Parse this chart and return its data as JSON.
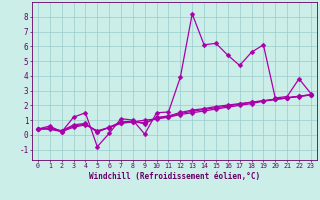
{
  "xlabel": "Windchill (Refroidissement éolien,°C)",
  "xlim": [
    -0.5,
    23.5
  ],
  "ylim": [
    -1.7,
    9.0
  ],
  "xticks": [
    0,
    1,
    2,
    3,
    4,
    5,
    6,
    7,
    8,
    9,
    10,
    11,
    12,
    13,
    14,
    15,
    16,
    17,
    18,
    19,
    20,
    21,
    22,
    23
  ],
  "yticks": [
    -1,
    0,
    1,
    2,
    3,
    4,
    5,
    6,
    7,
    8
  ],
  "bg_color": "#cceee8",
  "grid_color": "#99cccc",
  "line_color": "#aa00aa",
  "line_width": 0.9,
  "marker": "D",
  "marker_size": 2.5,
  "series": [
    [
      0.4,
      0.6,
      0.2,
      1.2,
      1.5,
      -0.8,
      0.1,
      1.1,
      1.0,
      0.05,
      1.5,
      1.55,
      3.9,
      8.2,
      6.1,
      6.2,
      5.4,
      4.7,
      5.6,
      6.1,
      2.5,
      2.6,
      3.8,
      2.8
    ],
    [
      0.4,
      0.38,
      0.22,
      0.52,
      0.68,
      0.28,
      0.5,
      0.78,
      0.88,
      1.0,
      1.08,
      1.2,
      1.38,
      1.5,
      1.62,
      1.75,
      1.88,
      2.0,
      2.12,
      2.28,
      2.4,
      2.5,
      2.62,
      2.72
    ],
    [
      0.4,
      0.48,
      0.28,
      0.68,
      0.78,
      0.18,
      0.52,
      0.88,
      0.92,
      0.75,
      1.18,
      1.28,
      1.52,
      1.68,
      1.78,
      1.92,
      2.02,
      2.12,
      2.22,
      2.32,
      2.42,
      2.52,
      2.62,
      2.72
    ],
    [
      0.4,
      0.44,
      0.25,
      0.6,
      0.73,
      0.23,
      0.5,
      0.83,
      0.9,
      0.82,
      1.12,
      1.24,
      1.45,
      1.6,
      1.72,
      1.84,
      1.96,
      2.08,
      2.2,
      2.3,
      2.4,
      2.5,
      2.6,
      2.7
    ]
  ]
}
